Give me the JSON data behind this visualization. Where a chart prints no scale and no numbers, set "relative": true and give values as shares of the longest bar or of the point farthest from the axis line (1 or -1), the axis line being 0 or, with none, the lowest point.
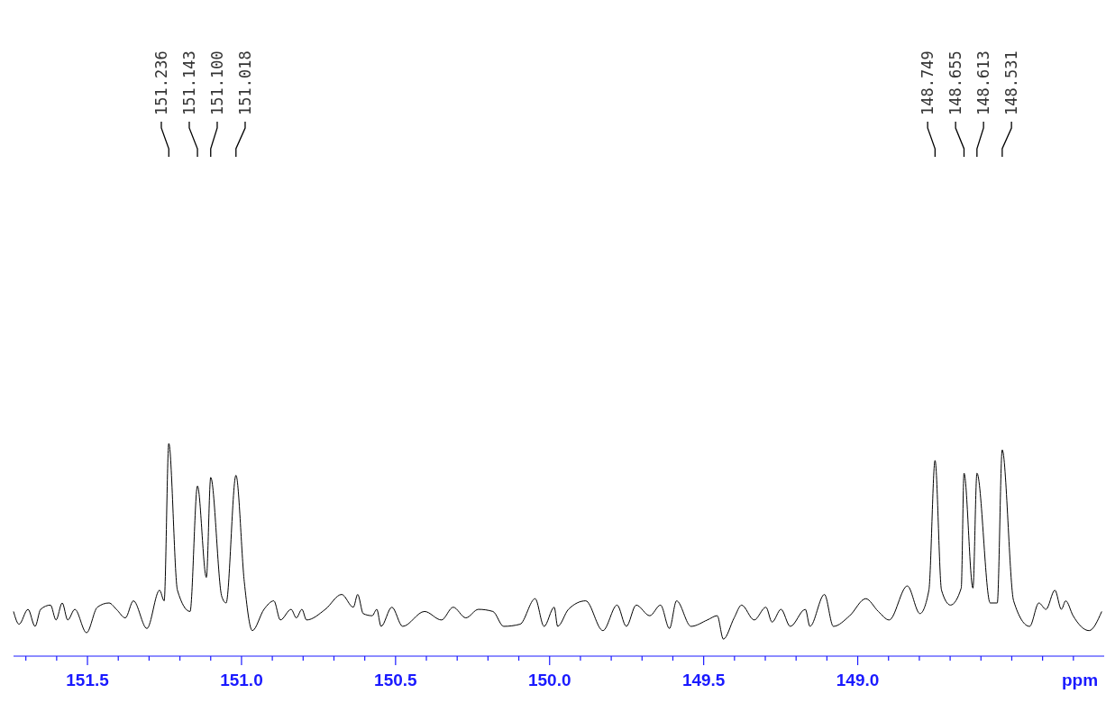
{
  "chart_data": {
    "type": "line",
    "relative": true,
    "xlabel": "ppm",
    "color": "#000000",
    "xlim": [
      151.74,
      148.2
    ],
    "xticks": [
      {
        "value": 151.7,
        "label": null
      },
      {
        "value": 151.6,
        "label": null
      },
      151.5,
      {
        "value": 151.4,
        "label": null
      },
      {
        "value": 151.3,
        "label": null
      },
      {
        "value": 151.2,
        "label": null
      },
      {
        "value": 151.1,
        "label": null
      },
      {
        "value": 151,
        "label": "151.0"
      },
      {
        "value": 150.9,
        "label": null
      },
      {
        "value": 150.8,
        "label": null
      },
      {
        "value": 150.7,
        "label": null
      },
      {
        "value": 150.6,
        "label": null
      },
      150.5,
      {
        "value": 150.4,
        "label": null
      },
      {
        "value": 150.3,
        "label": null
      },
      {
        "value": 150.2,
        "label": null
      },
      {
        "value": 150.1,
        "label": null
      },
      {
        "value": 150,
        "label": "150.0"
      },
      {
        "value": 149.9,
        "label": null
      },
      {
        "value": 149.8,
        "label": null
      },
      {
        "value": 149.7,
        "label": null
      },
      {
        "value": 149.6,
        "label": null
      },
      149.5,
      {
        "value": 149.4,
        "label": null
      },
      {
        "value": 149.3,
        "label": null
      },
      {
        "value": 149.2,
        "label": null
      },
      {
        "value": 149.1,
        "label": null
      },
      {
        "value": 149,
        "label": "149.0"
      },
      {
        "value": 148.9,
        "label": null
      },
      {
        "value": 148.8,
        "label": null
      },
      {
        "value": 148.7,
        "label": null
      },
      {
        "value": 148.6,
        "label": null
      },
      {
        "value": 148.5,
        "label": null
      },
      {
        "value": 148.4,
        "label": null
      },
      {
        "value": 148.3,
        "label": null
      }
    ],
    "x": [
      151.74,
      151.722,
      151.693,
      151.67,
      151.652,
      151.62,
      151.602,
      151.582,
      151.564,
      151.541,
      151.503,
      151.468,
      151.43,
      151.406,
      151.377,
      151.351,
      151.307,
      151.266,
      151.251,
      151.236,
      151.208,
      151.167,
      151.143,
      151.114,
      151.1,
      151.064,
      151.05,
      151.018,
      150.991,
      150.965,
      150.927,
      150.895,
      150.874,
      150.839,
      150.822,
      150.804,
      150.789,
      150.728,
      150.675,
      150.637,
      150.623,
      150.605,
      150.576,
      150.561,
      150.547,
      150.512,
      150.477,
      150.406,
      150.351,
      150.313,
      150.272,
      150.231,
      150.184,
      150.149,
      150.096,
      150.047,
      150.018,
      149.985,
      149.974,
      149.939,
      149.883,
      149.827,
      149.781,
      149.751,
      149.719,
      149.675,
      149.64,
      149.611,
      149.588,
      149.541,
      149.488,
      149.456,
      149.436,
      149.401,
      149.377,
      149.336,
      149.298,
      149.278,
      149.249,
      149.219,
      149.17,
      149.155,
      149.108,
      149.079,
      149.026,
      148.974,
      148.933,
      148.898,
      148.839,
      148.798,
      148.769,
      148.749,
      148.728,
      148.699,
      148.664,
      148.655,
      148.626,
      148.613,
      148.57,
      148.547,
      148.531,
      148.494,
      148.442,
      148.412,
      148.389,
      148.36,
      148.339,
      148.325,
      148.301,
      148.249,
      148.208
    ],
    "values": [
      0.21,
      0.15,
      0.22,
      0.14,
      0.22,
      0.24,
      0.17,
      0.25,
      0.17,
      0.22,
      0.11,
      0.23,
      0.25,
      0.22,
      0.18,
      0.26,
      0.13,
      0.31,
      0.26,
      1.0,
      0.31,
      0.21,
      0.8,
      0.37,
      0.84,
      0.28,
      0.25,
      0.85,
      0.35,
      0.12,
      0.22,
      0.26,
      0.17,
      0.22,
      0.18,
      0.22,
      0.17,
      0.22,
      0.29,
      0.23,
      0.29,
      0.2,
      0.19,
      0.22,
      0.14,
      0.23,
      0.14,
      0.21,
      0.17,
      0.23,
      0.18,
      0.22,
      0.21,
      0.14,
      0.15,
      0.27,
      0.14,
      0.23,
      0.14,
      0.22,
      0.26,
      0.12,
      0.24,
      0.14,
      0.24,
      0.19,
      0.24,
      0.13,
      0.26,
      0.14,
      0.17,
      0.19,
      0.08,
      0.18,
      0.24,
      0.17,
      0.23,
      0.16,
      0.22,
      0.14,
      0.22,
      0.14,
      0.29,
      0.14,
      0.19,
      0.27,
      0.21,
      0.17,
      0.33,
      0.2,
      0.31,
      0.92,
      0.31,
      0.24,
      0.32,
      0.86,
      0.32,
      0.86,
      0.25,
      0.25,
      0.97,
      0.26,
      0.14,
      0.25,
      0.22,
      0.31,
      0.22,
      0.26,
      0.19,
      0.12,
      0.21
    ],
    "annotations": [
      {
        "text": "151.236",
        "x": 151.236
      },
      {
        "text": "151.143",
        "x": 151.143
      },
      {
        "text": "151.100",
        "x": 151.1
      },
      {
        "text": "151.018",
        "x": 151.018
      },
      {
        "text": "148.749",
        "x": 148.749
      },
      {
        "text": "148.655",
        "x": 148.655
      },
      {
        "text": "148.613",
        "x": 148.613
      },
      {
        "text": "148.531",
        "x": 148.531
      }
    ]
  }
}
